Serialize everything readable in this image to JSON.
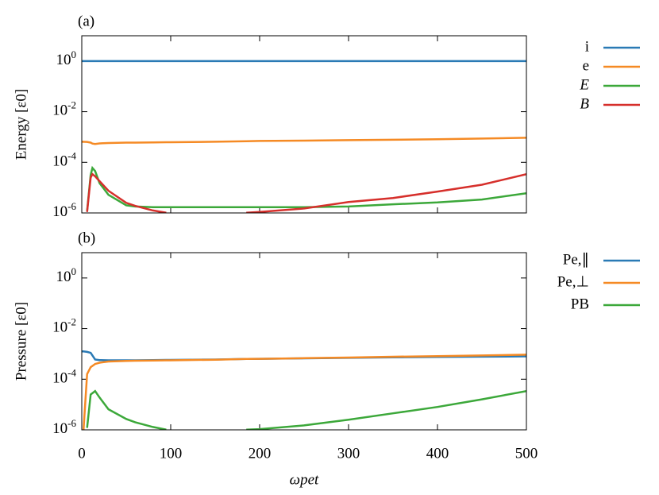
{
  "chart_data": [
    {
      "type": "line",
      "title": "(a)",
      "ylabel": "Energy [ε0]",
      "log_y": true,
      "legend": "right",
      "xtick_labels": false,
      "x": [
        0,
        6,
        10,
        12,
        15,
        20,
        30,
        50,
        60,
        80,
        95,
        100,
        150,
        185,
        200,
        250,
        300,
        350,
        400,
        450,
        500
      ],
      "xlim": [
        0,
        500
      ],
      "xticks": [
        0,
        100,
        200,
        300,
        400,
        500
      ],
      "ylim": [
        1e-06,
        10
      ],
      "yticks": [
        {
          "value": 1e-06,
          "label": "10",
          "exponent": "-6"
        },
        {
          "value": 0.0001,
          "label": "10",
          "exponent": "-4"
        },
        {
          "value": 0.01,
          "label": "10",
          "exponent": "-2"
        },
        {
          "value": 1,
          "label": "10",
          "exponent": "0"
        }
      ],
      "series": [
        {
          "name": "i",
          "color": "#2a7ab5",
          "values": [
            1,
            1,
            1,
            1,
            1,
            1,
            1,
            1,
            1,
            1,
            1,
            1,
            1,
            1,
            1,
            1,
            1,
            1,
            1,
            1,
            1
          ]
        },
        {
          "name": "e",
          "color": "#f58a24",
          "values": [
            0.00065,
            0.00064,
            0.0006,
            0.00055,
            0.00053,
            0.00056,
            0.00058,
            0.0006,
            0.0006,
            0.00061,
            0.00062,
            0.00062,
            0.00065,
            0.00068,
            0.0007,
            0.00072,
            0.00075,
            0.00078,
            0.00082,
            0.00087,
            0.00093
          ]
        },
        {
          "name": "E",
          "color": "#3ca83a",
          "values": [
            null,
            1.2e-06,
            3.2e-05,
            6e-05,
            4.5e-05,
            1.5e-05,
            5.2e-06,
            2e-06,
            1.8e-06,
            1.7e-06,
            1.7e-06,
            1.7e-06,
            1.7e-06,
            1.7e-06,
            1.7e-06,
            1.7e-06,
            1.8e-06,
            2.2e-06,
            2.6e-06,
            3.4e-06,
            6e-06
          ]
        },
        {
          "name": "B",
          "color": "#d62f2b",
          "values": [
            null,
            1.1e-06,
            2.5e-05,
            3.4e-05,
            2.8e-05,
            1.8e-05,
            7.5e-06,
            2.5e-06,
            1.9e-06,
            1.25e-06,
            1.02e-06,
            null,
            null,
            1.02e-06,
            1.1e-06,
            1.5e-06,
            2.7e-06,
            3.9e-06,
            7e-06,
            1.3e-05,
            3.4e-05
          ]
        }
      ]
    },
    {
      "type": "line",
      "title": "(b)",
      "ylabel": "Pressure [ε0]",
      "xlabel": "ωpet",
      "log_y": true,
      "legend": "right",
      "xtick_labels": true,
      "x": [
        0,
        2,
        6,
        10,
        15,
        20,
        30,
        50,
        60,
        80,
        95,
        100,
        150,
        185,
        200,
        250,
        300,
        350,
        400,
        450,
        500
      ],
      "xlim": [
        0,
        500
      ],
      "xticks": [
        0,
        100,
        200,
        300,
        400,
        500
      ],
      "ylim": [
        1e-06,
        10
      ],
      "yticks": [
        {
          "value": 1e-06,
          "label": "10",
          "exponent": "-6"
        },
        {
          "value": 0.0001,
          "label": "10",
          "exponent": "-4"
        },
        {
          "value": 0.01,
          "label": "10",
          "exponent": "-2"
        },
        {
          "value": 1,
          "label": "10",
          "exponent": "0"
        }
      ],
      "series": [
        {
          "name": "Pe,∥",
          "color": "#2a7ab5",
          "values": [
            0.00125,
            0.00125,
            0.0012,
            0.0011,
            0.0006,
            0.00057,
            0.00056,
            0.00056,
            0.00056,
            0.00057,
            0.00058,
            0.00058,
            0.0006,
            0.00063,
            0.00064,
            0.00067,
            0.0007,
            0.00073,
            0.00076,
            0.00078,
            0.0008
          ]
        },
        {
          "name": "Pe,⊥",
          "color": "#f58a24",
          "values": [
            null,
            1e-06,
            0.00016,
            0.0003,
            0.0004,
            0.00045,
            0.0005,
            0.00053,
            0.00054,
            0.00055,
            0.00056,
            0.00056,
            0.00059,
            0.00063,
            0.00064,
            0.00068,
            0.00072,
            0.00077,
            0.00082,
            0.00087,
            0.00093
          ]
        },
        {
          "name": "PB",
          "color": "#3ca83a",
          "values": [
            null,
            null,
            1.2e-06,
            2.5e-05,
            3.4e-05,
            1.9e-05,
            6.5e-06,
            2.7e-06,
            2e-06,
            1.3e-06,
            1.02e-06,
            null,
            null,
            1.02e-06,
            1.07e-06,
            1.5e-06,
            2.5e-06,
            4.5e-06,
            8e-06,
            1.6e-05,
            3.4e-05
          ]
        }
      ]
    }
  ]
}
